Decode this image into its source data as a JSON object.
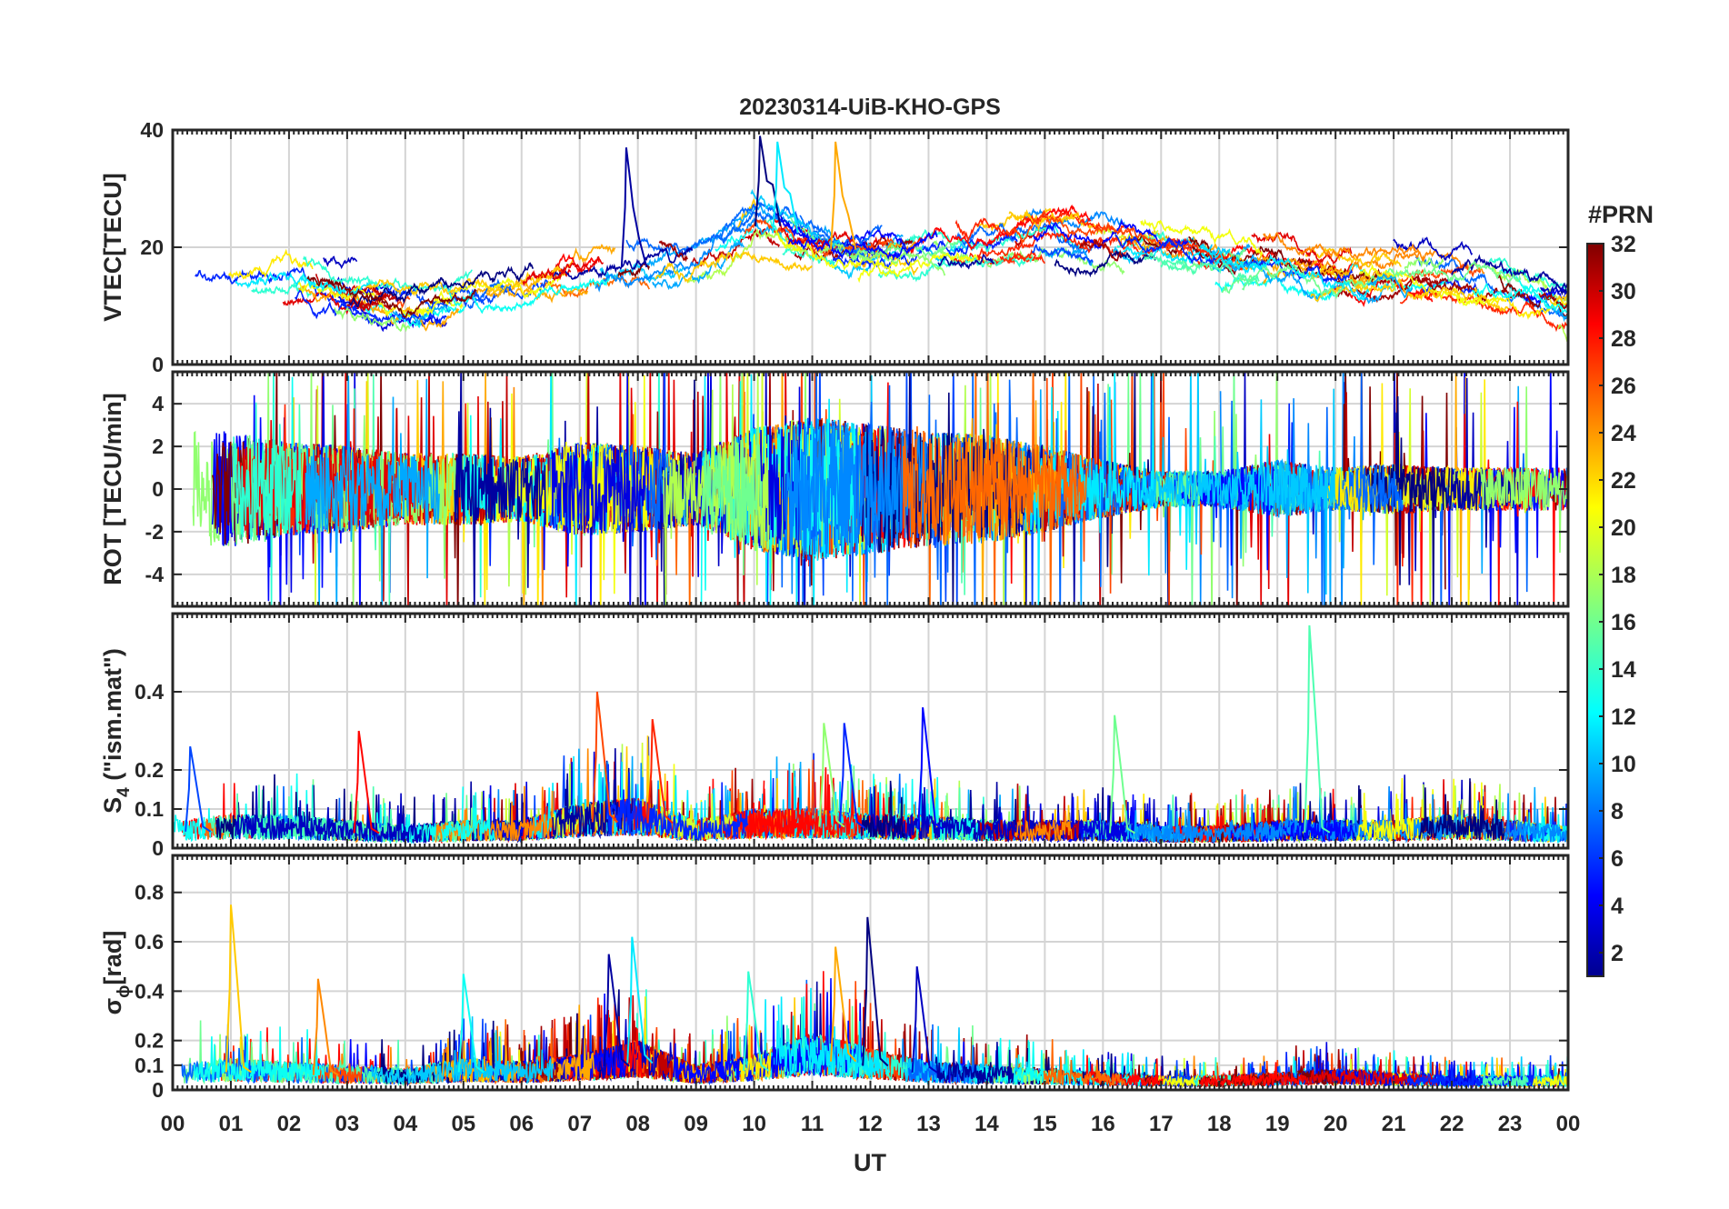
{
  "chart_data": {
    "type": "line",
    "title": "20230314-UiB-KHO-GPS",
    "xlabel": "UT",
    "x_tick_labels": [
      "00",
      "01",
      "02",
      "03",
      "04",
      "05",
      "06",
      "07",
      "08",
      "09",
      "10",
      "11",
      "12",
      "13",
      "14",
      "15",
      "16",
      "17",
      "18",
      "19",
      "20",
      "21",
      "22",
      "23",
      "00"
    ],
    "xlim": [
      0,
      24
    ],
    "colorbar": {
      "label": "#PRN",
      "range": [
        1,
        32
      ],
      "tick_labels": [
        "2",
        "4",
        "6",
        "8",
        "10",
        "12",
        "14",
        "16",
        "18",
        "20",
        "22",
        "24",
        "26",
        "28",
        "30",
        "32"
      ],
      "colormap": "jet"
    },
    "panels": [
      {
        "name": "vtec",
        "ylabel": "VTEC[TECU]",
        "ylim": [
          0,
          40
        ],
        "y_ticks": [
          0,
          20,
          40
        ],
        "y_tick_labels": [
          "0",
          "20",
          "40"
        ],
        "baseline": [
          12,
          12,
          15,
          11,
          10,
          11,
          13,
          15,
          17,
          18,
          24,
          20,
          19,
          20,
          20,
          22,
          21,
          20,
          18,
          17,
          15,
          15,
          15,
          13,
          10
        ],
        "amplitude": 3.5,
        "peaks": [
          {
            "x": 10.1,
            "value": 39
          },
          {
            "x": 10.4,
            "value": 38
          },
          {
            "x": 11.4,
            "value": 38
          },
          {
            "x": 7.8,
            "value": 37
          }
        ]
      },
      {
        "name": "rot",
        "ylabel": "ROT [TECU/min]",
        "ylim": [
          -5.5,
          5.5
        ],
        "y_ticks": [
          -4,
          -2,
          0,
          2,
          4
        ],
        "y_tick_labels": [
          "-4",
          "-2",
          "0",
          "2",
          "4"
        ],
        "activity": [
          1.6,
          1.6,
          1.3,
          1.2,
          1.0,
          1.0,
          0.9,
          1.3,
          1.2,
          1.0,
          1.7,
          2.0,
          1.8,
          1.6,
          1.5,
          1.2,
          0.8,
          0.5,
          0.5,
          0.8,
          0.6,
          0.7,
          0.6,
          0.6,
          0.6
        ]
      },
      {
        "name": "s4",
        "ylabel": "S",
        "ylabel_sub": "4",
        "ylabel_tail": " (\"ism.mat\")",
        "ylim": [
          0,
          0.6
        ],
        "y_ticks": [
          0,
          0.1,
          0.2,
          0.4
        ],
        "y_tick_labels": [
          "0",
          "0.1",
          "0.2",
          "0.4"
        ],
        "baseline": [
          0.05,
          0.06,
          0.06,
          0.05,
          0.04,
          0.05,
          0.05,
          0.08,
          0.09,
          0.05,
          0.07,
          0.07,
          0.06,
          0.06,
          0.05,
          0.05,
          0.05,
          0.04,
          0.04,
          0.05,
          0.05,
          0.05,
          0.06,
          0.05,
          0.04
        ],
        "amplitude": 0.035,
        "peaks": [
          {
            "x": 19.55,
            "value": 0.57
          },
          {
            "x": 7.3,
            "value": 0.4
          },
          {
            "x": 12.9,
            "value": 0.36
          },
          {
            "x": 16.2,
            "value": 0.34
          },
          {
            "x": 8.25,
            "value": 0.33
          },
          {
            "x": 11.55,
            "value": 0.32
          },
          {
            "x": 11.2,
            "value": 0.32
          },
          {
            "x": 3.2,
            "value": 0.3
          },
          {
            "x": 0.3,
            "value": 0.26
          }
        ]
      },
      {
        "name": "sigma_phi",
        "ylabel": "σ",
        "ylabel_sub": "ϕ",
        "ylabel_tail": "[rad]",
        "ylim": [
          0,
          0.95
        ],
        "y_ticks": [
          0,
          0.1,
          0.2,
          0.4,
          0.6,
          0.8
        ],
        "y_tick_labels": [
          "0",
          "0.1",
          "0.2",
          "0.4",
          "0.6",
          "0.8"
        ],
        "baseline": [
          0.07,
          0.09,
          0.08,
          0.07,
          0.06,
          0.09,
          0.08,
          0.1,
          0.14,
          0.07,
          0.1,
          0.16,
          0.12,
          0.08,
          0.07,
          0.06,
          0.05,
          0.04,
          0.04,
          0.05,
          0.06,
          0.05,
          0.04,
          0.04,
          0.04
        ],
        "amplitude": 0.06,
        "peaks": [
          {
            "x": 1.0,
            "value": 0.75
          },
          {
            "x": 11.95,
            "value": 0.7
          },
          {
            "x": 7.9,
            "value": 0.62
          },
          {
            "x": 11.4,
            "value": 0.58
          },
          {
            "x": 7.5,
            "value": 0.55
          },
          {
            "x": 5.0,
            "value": 0.47
          },
          {
            "x": 2.5,
            "value": 0.45
          },
          {
            "x": 12.8,
            "value": 0.5
          },
          {
            "x": 9.9,
            "value": 0.48
          }
        ]
      }
    ]
  }
}
